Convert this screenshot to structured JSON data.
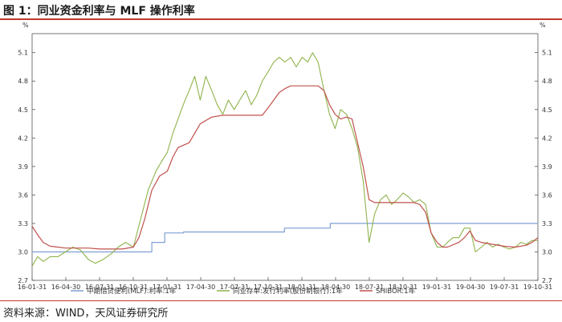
{
  "figure": {
    "title": "图 1：同业资金利率与 MLF 操作利率",
    "source": "资料来源：WIND，天风证券研究所"
  },
  "chart_data": {
    "type": "line",
    "title": "图 1：同业资金利率与 MLF 操作利率",
    "ylabel_left": "%",
    "ylabel_right": "%",
    "ylim": [
      2.7,
      5.3
    ],
    "yticks": [
      "2.7",
      "3.0",
      "3.3",
      "3.6",
      "3.9",
      "4.2",
      "4.5",
      "4.8",
      "5.1"
    ],
    "xlim": [
      "2016-01-31",
      "2019-10-31"
    ],
    "xticks": [
      "16-01-31",
      "16-04-30",
      "16-07-31",
      "16-10-31",
      "17-01-31",
      "17-04-30",
      "17-07-31",
      "17-10-31",
      "18-01-31",
      "18-04-30",
      "18-07-31",
      "18-10-31",
      "19-01-31",
      "19-04-30",
      "19-07-31",
      "19-10-31"
    ],
    "legend_position": "bottom",
    "grid": false,
    "series": [
      {
        "name": "中期借贷便利(MLF):利率:1年",
        "color": "#7f9fd4",
        "step": true,
        "points": [
          [
            "2016-01-31",
            3.0
          ],
          [
            "2016-12-20",
            3.0
          ],
          [
            "2016-12-20",
            3.1
          ],
          [
            "2017-01-24",
            3.1
          ],
          [
            "2017-01-24",
            3.2
          ],
          [
            "2017-03-16",
            3.2
          ],
          [
            "2017-03-16",
            3.21
          ],
          [
            "2017-12-14",
            3.21
          ],
          [
            "2017-12-14",
            3.25
          ],
          [
            "2018-04-17",
            3.25
          ],
          [
            "2018-04-17",
            3.3
          ],
          [
            "2019-10-31",
            3.3
          ]
        ]
      },
      {
        "name": "同业存单:发行利率(股份制银行):1年",
        "color": "#8fb34b",
        "points": [
          [
            "2016-01-31",
            2.85
          ],
          [
            "2016-02-15",
            2.95
          ],
          [
            "2016-03-01",
            2.9
          ],
          [
            "2016-03-20",
            2.95
          ],
          [
            "2016-04-10",
            2.95
          ],
          [
            "2016-04-30",
            3.0
          ],
          [
            "2016-05-20",
            3.05
          ],
          [
            "2016-06-10",
            3.02
          ],
          [
            "2016-07-01",
            2.92
          ],
          [
            "2016-07-20",
            2.88
          ],
          [
            "2016-08-10",
            2.92
          ],
          [
            "2016-09-01",
            2.98
          ],
          [
            "2016-09-20",
            3.05
          ],
          [
            "2016-10-10",
            3.1
          ],
          [
            "2016-10-31",
            3.05
          ],
          [
            "2016-11-20",
            3.35
          ],
          [
            "2016-12-10",
            3.65
          ],
          [
            "2016-12-31",
            3.85
          ],
          [
            "2017-01-15",
            3.95
          ],
          [
            "2017-01-31",
            4.05
          ],
          [
            "2017-02-15",
            4.25
          ],
          [
            "2017-03-01",
            4.4
          ],
          [
            "2017-03-15",
            4.55
          ],
          [
            "2017-03-31",
            4.7
          ],
          [
            "2017-04-15",
            4.85
          ],
          [
            "2017-04-30",
            4.6
          ],
          [
            "2017-05-15",
            4.85
          ],
          [
            "2017-05-31",
            4.7
          ],
          [
            "2017-06-15",
            4.55
          ],
          [
            "2017-06-30",
            4.45
          ],
          [
            "2017-07-15",
            4.6
          ],
          [
            "2017-07-31",
            4.5
          ],
          [
            "2017-08-15",
            4.6
          ],
          [
            "2017-08-31",
            4.7
          ],
          [
            "2017-09-15",
            4.55
          ],
          [
            "2017-09-30",
            4.65
          ],
          [
            "2017-10-15",
            4.8
          ],
          [
            "2017-10-31",
            4.9
          ],
          [
            "2017-11-15",
            5.0
          ],
          [
            "2017-11-30",
            5.05
          ],
          [
            "2017-12-15",
            5.0
          ],
          [
            "2017-12-31",
            5.05
          ],
          [
            "2018-01-15",
            4.95
          ],
          [
            "2018-01-31",
            5.05
          ],
          [
            "2018-02-15",
            5.0
          ],
          [
            "2018-02-28",
            5.1
          ],
          [
            "2018-03-15",
            5.0
          ],
          [
            "2018-03-31",
            4.7
          ],
          [
            "2018-04-15",
            4.45
          ],
          [
            "2018-04-30",
            4.3
          ],
          [
            "2018-05-15",
            4.5
          ],
          [
            "2018-05-31",
            4.45
          ],
          [
            "2018-06-15",
            4.3
          ],
          [
            "2018-06-30",
            4.1
          ],
          [
            "2018-07-15",
            3.75
          ],
          [
            "2018-07-31",
            3.1
          ],
          [
            "2018-08-15",
            3.4
          ],
          [
            "2018-08-31",
            3.55
          ],
          [
            "2018-09-15",
            3.6
          ],
          [
            "2018-09-30",
            3.5
          ],
          [
            "2018-10-15",
            3.55
          ],
          [
            "2018-10-31",
            3.62
          ],
          [
            "2018-11-15",
            3.58
          ],
          [
            "2018-11-30",
            3.52
          ],
          [
            "2018-12-15",
            3.55
          ],
          [
            "2018-12-31",
            3.5
          ],
          [
            "2019-01-15",
            3.2
          ],
          [
            "2019-01-31",
            3.05
          ],
          [
            "2019-02-15",
            3.05
          ],
          [
            "2019-02-28",
            3.1
          ],
          [
            "2019-03-15",
            3.15
          ],
          [
            "2019-03-31",
            3.15
          ],
          [
            "2019-04-15",
            3.25
          ],
          [
            "2019-04-30",
            3.25
          ],
          [
            "2019-05-15",
            3.0
          ],
          [
            "2019-05-31",
            3.05
          ],
          [
            "2019-06-15",
            3.1
          ],
          [
            "2019-06-30",
            3.05
          ],
          [
            "2019-07-15",
            3.08
          ],
          [
            "2019-07-31",
            3.05
          ],
          [
            "2019-08-15",
            3.03
          ],
          [
            "2019-08-31",
            3.05
          ],
          [
            "2019-09-15",
            3.1
          ],
          [
            "2019-09-30",
            3.08
          ],
          [
            "2019-10-15",
            3.12
          ],
          [
            "2019-10-31",
            3.12
          ]
        ]
      },
      {
        "name": "SHIBOR:1年",
        "color": "#c0504d",
        "points": [
          [
            "2016-01-31",
            3.27
          ],
          [
            "2016-02-15",
            3.18
          ],
          [
            "2016-03-01",
            3.1
          ],
          [
            "2016-03-20",
            3.06
          ],
          [
            "2016-04-10",
            3.05
          ],
          [
            "2016-04-30",
            3.04
          ],
          [
            "2016-06-01",
            3.04
          ],
          [
            "2016-07-01",
            3.04
          ],
          [
            "2016-08-01",
            3.03
          ],
          [
            "2016-09-01",
            3.03
          ],
          [
            "2016-10-01",
            3.03
          ],
          [
            "2016-10-31",
            3.05
          ],
          [
            "2016-11-15",
            3.15
          ],
          [
            "2016-12-01",
            3.35
          ],
          [
            "2016-12-20",
            3.65
          ],
          [
            "2017-01-10",
            3.8
          ],
          [
            "2017-01-31",
            3.85
          ],
          [
            "2017-02-15",
            4.0
          ],
          [
            "2017-03-01",
            4.1
          ],
          [
            "2017-03-31",
            4.15
          ],
          [
            "2017-04-15",
            4.25
          ],
          [
            "2017-04-30",
            4.35
          ],
          [
            "2017-05-31",
            4.42
          ],
          [
            "2017-06-30",
            4.44
          ],
          [
            "2017-07-31",
            4.44
          ],
          [
            "2017-08-31",
            4.44
          ],
          [
            "2017-09-30",
            4.44
          ],
          [
            "2017-10-15",
            4.44
          ],
          [
            "2017-10-31",
            4.52
          ],
          [
            "2017-11-15",
            4.6
          ],
          [
            "2017-11-30",
            4.68
          ],
          [
            "2017-12-15",
            4.72
          ],
          [
            "2017-12-31",
            4.75
          ],
          [
            "2018-01-31",
            4.75
          ],
          [
            "2018-02-28",
            4.75
          ],
          [
            "2018-03-15",
            4.75
          ],
          [
            "2018-03-31",
            4.7
          ],
          [
            "2018-04-15",
            4.55
          ],
          [
            "2018-04-30",
            4.45
          ],
          [
            "2018-05-15",
            4.4
          ],
          [
            "2018-05-31",
            4.42
          ],
          [
            "2018-06-15",
            4.4
          ],
          [
            "2018-06-30",
            4.15
          ],
          [
            "2018-07-15",
            3.9
          ],
          [
            "2018-07-31",
            3.55
          ],
          [
            "2018-08-15",
            3.52
          ],
          [
            "2018-08-31",
            3.52
          ],
          [
            "2018-09-30",
            3.52
          ],
          [
            "2018-10-31",
            3.52
          ],
          [
            "2018-11-30",
            3.52
          ],
          [
            "2018-12-15",
            3.5
          ],
          [
            "2018-12-31",
            3.42
          ],
          [
            "2019-01-15",
            3.2
          ],
          [
            "2019-01-31",
            3.1
          ],
          [
            "2019-02-15",
            3.05
          ],
          [
            "2019-02-28",
            3.05
          ],
          [
            "2019-03-31",
            3.1
          ],
          [
            "2019-04-15",
            3.15
          ],
          [
            "2019-04-30",
            3.22
          ],
          [
            "2019-05-15",
            3.12
          ],
          [
            "2019-05-31",
            3.1
          ],
          [
            "2019-06-30",
            3.08
          ],
          [
            "2019-07-31",
            3.06
          ],
          [
            "2019-08-31",
            3.05
          ],
          [
            "2019-09-30",
            3.07
          ],
          [
            "2019-10-15",
            3.1
          ],
          [
            "2019-10-31",
            3.15
          ]
        ]
      }
    ]
  }
}
